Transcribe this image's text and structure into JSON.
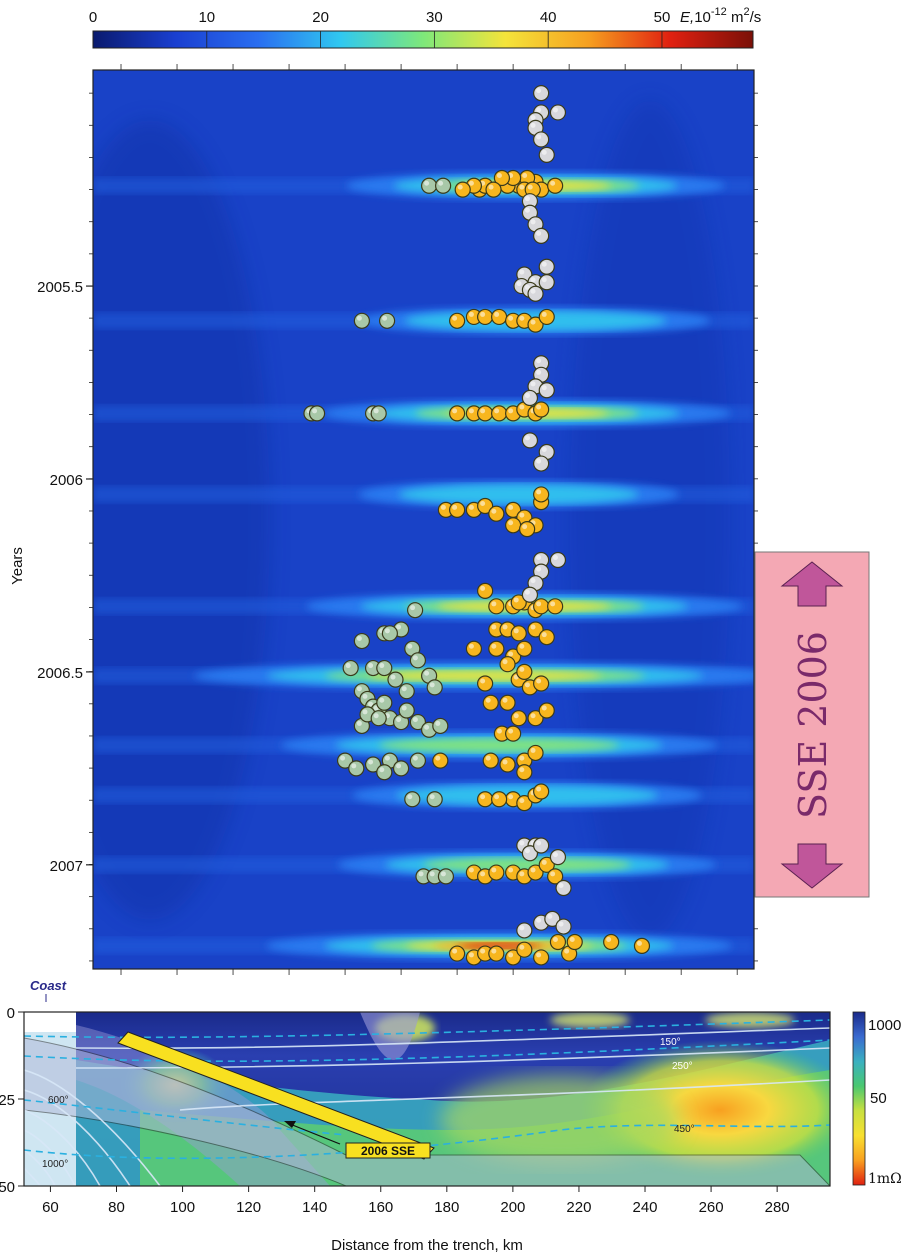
{
  "colorbar_top": {
    "ticks": [
      "0",
      "10",
      "20",
      "30",
      "40",
      "50"
    ],
    "label_main": "E,",
    "label_exp": "10",
    "label_sup": "-12",
    "label_unit": " m",
    "label_unit_sup": "2",
    "label_tail": "/s",
    "stops": [
      "#0a1a6e",
      "#1a3fd0",
      "#2a6ef0",
      "#30c8f0",
      "#7ee87a",
      "#f4e43a",
      "#f6a020",
      "#e02010",
      "#7a1008"
    ]
  },
  "main_panel": {
    "ylabel": "Years",
    "year_ticks": [
      "2005.5",
      "2006",
      "2006.5",
      "2007"
    ],
    "background": "#1940c8"
  },
  "sse_box": {
    "label": "SSE 2006",
    "fill": "#f4a8b4",
    "arrow_color": "#c0569a"
  },
  "cross_section": {
    "coast_label": "Coast",
    "y_ticks": [
      "0",
      "25",
      "50"
    ],
    "x_ticks": [
      "60",
      "80",
      "100",
      "120",
      "140",
      "160",
      "180",
      "200",
      "220",
      "240",
      "260",
      "280"
    ],
    "xlabel": "Distance from the trench, km",
    "isotherms": [
      "150°",
      "250°",
      "450°",
      "600°",
      "1000°"
    ],
    "sse_label": "2006 SSE"
  },
  "colorbar_right": {
    "ticks": [
      "1000",
      "50",
      "1mΩ"
    ],
    "stops": [
      "#1a2a8a",
      "#3a6ad0",
      "#3ab0c0",
      "#4ac870",
      "#c8e040",
      "#f8e030",
      "#f8a020",
      "#e02010"
    ]
  },
  "chart_data": [
    {
      "type": "heatmap",
      "title": "",
      "xlabel": "",
      "ylabel": "Years",
      "x_axis": "Distance from the trench, km",
      "xlim": [
        60,
        296
      ],
      "ylim": [
        2005.25,
        2007.3
      ],
      "colorbar": {
        "label": "E, 10^-12 m^2/s",
        "range": [
          0,
          58
        ]
      },
      "diffusion_bands": [
        {
          "year": 2005.24,
          "x_center": 218,
          "half_width": 26,
          "intensity": 0.6
        },
        {
          "year": 2005.59,
          "x_center": 218,
          "half_width": 24,
          "intensity": 0.4
        },
        {
          "year": 2005.83,
          "x_center": 215,
          "half_width": 28,
          "intensity": 0.6
        },
        {
          "year": 2006.04,
          "x_center": 212,
          "half_width": 22,
          "intensity": 0.4
        },
        {
          "year": 2006.33,
          "x_center": 214,
          "half_width": 30,
          "intensity": 0.65
        },
        {
          "year": 2006.51,
          "x_center": 200,
          "half_width": 40,
          "intensity": 0.65
        },
        {
          "year": 2006.69,
          "x_center": 205,
          "half_width": 30,
          "intensity": 0.45
        },
        {
          "year": 2006.82,
          "x_center": 215,
          "half_width": 24,
          "intensity": 0.4
        },
        {
          "year": 2007.0,
          "x_center": 215,
          "half_width": 26,
          "intensity": 0.5
        },
        {
          "year": 2007.21,
          "x_center": 205,
          "half_width": 32,
          "intensity": 1.0
        }
      ],
      "series": [
        {
          "name": "",
          "color": "#f7b61e",
          "points": [
            [
              218,
              2005.23
            ],
            [
              212,
              2005.24
            ],
            [
              215,
              2005.22
            ],
            [
              220,
              2005.25
            ],
            [
              208,
              2005.24
            ],
            [
              225,
              2005.24
            ],
            [
              210,
              2005.22
            ],
            [
              206,
              2005.22
            ],
            [
              198,
              2005.25
            ],
            [
              214,
              2005.25
            ],
            [
              217,
              2005.25
            ],
            [
              200,
              2005.24
            ],
            [
              203,
              2005.25
            ],
            [
              196,
              2005.24
            ],
            [
              192,
              2005.25
            ],
            [
              190,
              2005.59
            ],
            [
              196,
              2005.58
            ],
            [
              200,
              2005.58
            ],
            [
              205,
              2005.58
            ],
            [
              210,
              2005.59
            ],
            [
              214,
              2005.59
            ],
            [
              218,
              2005.6
            ],
            [
              222,
              2005.58
            ],
            [
              190,
              2005.83
            ],
            [
              196,
              2005.83
            ],
            [
              200,
              2005.83
            ],
            [
              205,
              2005.83
            ],
            [
              210,
              2005.83
            ],
            [
              214,
              2005.82
            ],
            [
              218,
              2005.83
            ],
            [
              220,
              2005.82
            ],
            [
              186,
              2006.08
            ],
            [
              190,
              2006.08
            ],
            [
              196,
              2006.08
            ],
            [
              200,
              2006.07
            ],
            [
              204,
              2006.09
            ],
            [
              210,
              2006.08
            ],
            [
              214,
              2006.1
            ],
            [
              218,
              2006.12
            ],
            [
              220,
              2006.06
            ],
            [
              220,
              2006.04
            ],
            [
              210,
              2006.12
            ],
            [
              215,
              2006.13
            ],
            [
              200,
              2006.29
            ],
            [
              204,
              2006.33
            ],
            [
              210,
              2006.33
            ],
            [
              214,
              2006.32
            ],
            [
              218,
              2006.34
            ],
            [
              220,
              2006.33
            ],
            [
              212,
              2006.32
            ],
            [
              225,
              2006.33
            ],
            [
              204,
              2006.39
            ],
            [
              208,
              2006.39
            ],
            [
              212,
              2006.4
            ],
            [
              218,
              2006.39
            ],
            [
              222,
              2006.41
            ],
            [
              210,
              2006.46
            ],
            [
              214,
              2006.44
            ],
            [
              196,
              2006.44
            ],
            [
              204,
              2006.44
            ],
            [
              208,
              2006.48
            ],
            [
              212,
              2006.52
            ],
            [
              216,
              2006.54
            ],
            [
              220,
              2006.53
            ],
            [
              200,
              2006.53
            ],
            [
              214,
              2006.5
            ],
            [
              202,
              2006.58
            ],
            [
              208,
              2006.58
            ],
            [
              212,
              2006.62
            ],
            [
              218,
              2006.62
            ],
            [
              222,
              2006.6
            ],
            [
              206,
              2006.66
            ],
            [
              210,
              2006.66
            ],
            [
              184,
              2006.73
            ],
            [
              202,
              2006.73
            ],
            [
              208,
              2006.74
            ],
            [
              214,
              2006.73
            ],
            [
              218,
              2006.71
            ],
            [
              214,
              2006.76
            ],
            [
              210,
              2006.83
            ],
            [
              214,
              2006.84
            ],
            [
              218,
              2006.82
            ],
            [
              220,
              2006.81
            ],
            [
              200,
              2006.83
            ],
            [
              205,
              2006.83
            ],
            [
              196,
              2007.02
            ],
            [
              200,
              2007.03
            ],
            [
              204,
              2007.02
            ],
            [
              210,
              2007.02
            ],
            [
              214,
              2007.03
            ],
            [
              218,
              2007.02
            ],
            [
              222,
              2007.0
            ],
            [
              225,
              2007.03
            ],
            [
              190,
              2007.23
            ],
            [
              196,
              2007.24
            ],
            [
              200,
              2007.23
            ],
            [
              204,
              2007.23
            ],
            [
              210,
              2007.24
            ],
            [
              214,
              2007.22
            ],
            [
              220,
              2007.24
            ],
            [
              230,
              2007.23
            ],
            [
              245,
              2007.2
            ],
            [
              256,
              2007.21
            ],
            [
              232,
              2007.2
            ],
            [
              226,
              2007.2
            ]
          ]
        },
        {
          "name": "",
          "color": "#a8c8a8",
          "points": [
            [
              180,
              2005.24
            ],
            [
              185,
              2005.24
            ],
            [
              156,
              2005.59
            ],
            [
              165,
              2005.59
            ],
            [
              138,
              2005.83
            ],
            [
              140,
              2005.83
            ],
            [
              160,
              2005.83
            ],
            [
              162,
              2005.83
            ],
            [
              175,
              2006.34
            ],
            [
              170,
              2006.39
            ],
            [
              164,
              2006.4
            ],
            [
              166,
              2006.4
            ],
            [
              156,
              2006.42
            ],
            [
              174,
              2006.44
            ],
            [
              176,
              2006.47
            ],
            [
              152,
              2006.49
            ],
            [
              160,
              2006.49
            ],
            [
              164,
              2006.49
            ],
            [
              180,
              2006.51
            ],
            [
              168,
              2006.52
            ],
            [
              172,
              2006.55
            ],
            [
              182,
              2006.54
            ],
            [
              156,
              2006.55
            ],
            [
              158,
              2006.57
            ],
            [
              160,
              2006.59
            ],
            [
              162,
              2006.6
            ],
            [
              164,
              2006.58
            ],
            [
              166,
              2006.62
            ],
            [
              170,
              2006.63
            ],
            [
              176,
              2006.63
            ],
            [
              180,
              2006.65
            ],
            [
              156,
              2006.64
            ],
            [
              158,
              2006.61
            ],
            [
              162,
              2006.62
            ],
            [
              172,
              2006.6
            ],
            [
              184,
              2006.64
            ],
            [
              150,
              2006.73
            ],
            [
              154,
              2006.75
            ],
            [
              160,
              2006.74
            ],
            [
              166,
              2006.73
            ],
            [
              170,
              2006.75
            ],
            [
              164,
              2006.76
            ],
            [
              176,
              2006.73
            ],
            [
              174,
              2006.83
            ],
            [
              182,
              2006.83
            ],
            [
              178,
              2007.03
            ],
            [
              182,
              2007.03
            ],
            [
              186,
              2007.03
            ]
          ]
        },
        {
          "name": "",
          "color": "#d8d8dc",
          "points": [
            [
              220,
              2005.0
            ],
            [
              220,
              2005.05
            ],
            [
              218,
              2005.07
            ],
            [
              226,
              2005.05
            ],
            [
              218,
              2005.09
            ],
            [
              220,
              2005.12
            ],
            [
              222,
              2005.16
            ],
            [
              216,
              2005.28
            ],
            [
              216,
              2005.31
            ],
            [
              218,
              2005.34
            ],
            [
              220,
              2005.37
            ],
            [
              222,
              2005.45
            ],
            [
              214,
              2005.47
            ],
            [
              218,
              2005.49
            ],
            [
              222,
              2005.49
            ],
            [
              213,
              2005.5
            ],
            [
              216,
              2005.51
            ],
            [
              218,
              2005.52
            ],
            [
              220,
              2005.7
            ],
            [
              220,
              2005.73
            ],
            [
              218,
              2005.76
            ],
            [
              216,
              2005.79
            ],
            [
              222,
              2005.77
            ],
            [
              216,
              2005.9
            ],
            [
              222,
              2005.93
            ],
            [
              220,
              2005.96
            ],
            [
              220,
              2006.21
            ],
            [
              220,
              2006.24
            ],
            [
              226,
              2006.21
            ],
            [
              218,
              2006.27
            ],
            [
              216,
              2006.3
            ],
            [
              214,
              2006.95
            ],
            [
              218,
              2006.95
            ],
            [
              216,
              2006.97
            ],
            [
              220,
              2006.95
            ],
            [
              226,
              2006.98
            ],
            [
              228,
              2007.06
            ],
            [
              220,
              2007.15
            ],
            [
              224,
              2007.14
            ],
            [
              228,
              2007.16
            ],
            [
              214,
              2007.17
            ]
          ]
        }
      ]
    },
    {
      "type": "heatmap",
      "title": "",
      "xlabel": "Distance from the trench, km",
      "ylabel": "",
      "xlim": [
        52,
        296
      ],
      "ylim": [
        50,
        0
      ],
      "x_ticks": [
        60,
        80,
        100,
        120,
        140,
        160,
        180,
        200,
        220,
        240,
        260,
        280
      ],
      "y_ticks": [
        0,
        25,
        50
      ],
      "colorbar": {
        "ticks": [
          "1000",
          "50",
          "1mΩ"
        ]
      },
      "isotherm_labels": [
        {
          "text": "150°",
          "x": 220,
          "y": 9
        },
        {
          "text": "250°",
          "x": 220,
          "y": 15
        },
        {
          "text": "450°",
          "x": 210,
          "y": 30
        },
        {
          "text": "600°",
          "x": 60,
          "y": 23
        },
        {
          "text": "1000°",
          "x": 60,
          "y": 42
        }
      ],
      "sse_segment": {
        "label": "2006 SSE",
        "from": [
          80,
          10
        ],
        "to": [
          155,
          40
        ]
      }
    }
  ]
}
